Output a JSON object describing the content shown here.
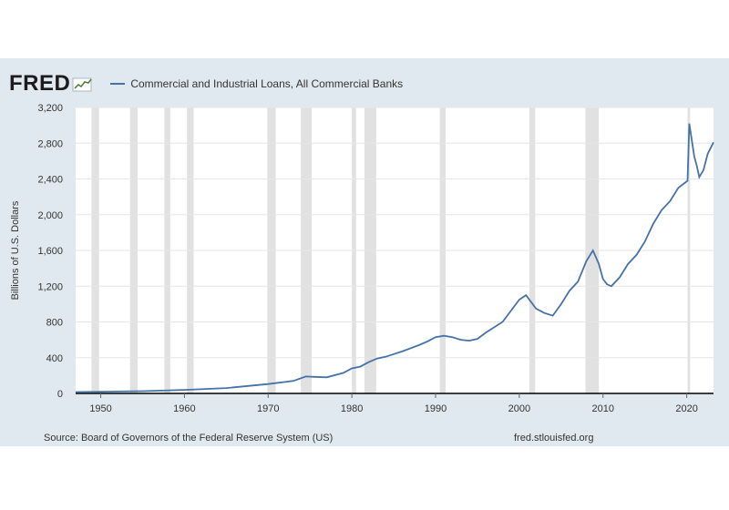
{
  "logo": {
    "text": "FRED"
  },
  "colors": {
    "panel_bg": "#e1e9f0",
    "series": "#4572a7",
    "recession": "#e1e1e1",
    "grid": "#e6e6e6"
  },
  "chart_data": {
    "type": "line",
    "title": "Commercial and Industrial Loans, All Commercial Banks",
    "ylabel": "Billions of U.S. Dollars",
    "xlabel": "",
    "xlim": [
      1947,
      2023.2
    ],
    "ylim": [
      0,
      3200
    ],
    "x_ticks": [
      "1950",
      "1960",
      "1970",
      "1980",
      "1990",
      "2000",
      "2010",
      "2020"
    ],
    "y_ticks": [
      "0",
      "400",
      "800",
      "1,200",
      "1,600",
      "2,000",
      "2,400",
      "2,800",
      "3,200"
    ],
    "grid": true,
    "recessions": [
      [
        1948.9,
        1949.8
      ],
      [
        1953.5,
        1954.4
      ],
      [
        1957.6,
        1958.3
      ],
      [
        1960.3,
        1961.1
      ],
      [
        1969.9,
        1970.9
      ],
      [
        1973.9,
        1975.2
      ],
      [
        1980.0,
        1980.5
      ],
      [
        1981.5,
        1982.9
      ],
      [
        1990.5,
        1991.2
      ],
      [
        2001.2,
        2001.9
      ],
      [
        2007.9,
        2009.5
      ],
      [
        2020.1,
        2020.4
      ]
    ],
    "series": [
      {
        "name": "Commercial and Industrial Loans, All Commercial Banks",
        "x": [
          1947,
          1950,
          1955,
          1960,
          1965,
          1970,
          1973,
          1974.5,
          1975.5,
          1977,
          1979,
          1980,
          1981,
          1982,
          1983,
          1984,
          1986,
          1988,
          1989,
          1990,
          1991,
          1992,
          1993,
          1994,
          1995,
          1996,
          1998,
          2000,
          2000.8,
          2002,
          2003,
          2004,
          2005,
          2006,
          2007,
          2008,
          2008.8,
          2009.5,
          2010,
          2010.5,
          2011,
          2012,
          2013,
          2014,
          2015,
          2016,
          2017,
          2018,
          2019,
          2020.1,
          2020.3,
          2020.5,
          2020.9,
          2021.2,
          2021.5,
          2022,
          2022.5,
          2023.2
        ],
        "values": [
          15,
          19,
          25,
          40,
          60,
          105,
          140,
          190,
          185,
          180,
          230,
          280,
          300,
          350,
          390,
          410,
          470,
          540,
          580,
          630,
          645,
          630,
          600,
          590,
          610,
          680,
          800,
          1050,
          1100,
          950,
          900,
          870,
          1000,
          1150,
          1250,
          1480,
          1600,
          1450,
          1280,
          1220,
          1200,
          1300,
          1450,
          1550,
          1700,
          1900,
          2050,
          2150,
          2300,
          2380,
          3020,
          2900,
          2650,
          2550,
          2420,
          2500,
          2680,
          2810
        ]
      }
    ]
  },
  "footer": {
    "source": "Source: Board of Governors of the Federal Reserve System (US)",
    "site": "fred.stlouisfed.org"
  }
}
